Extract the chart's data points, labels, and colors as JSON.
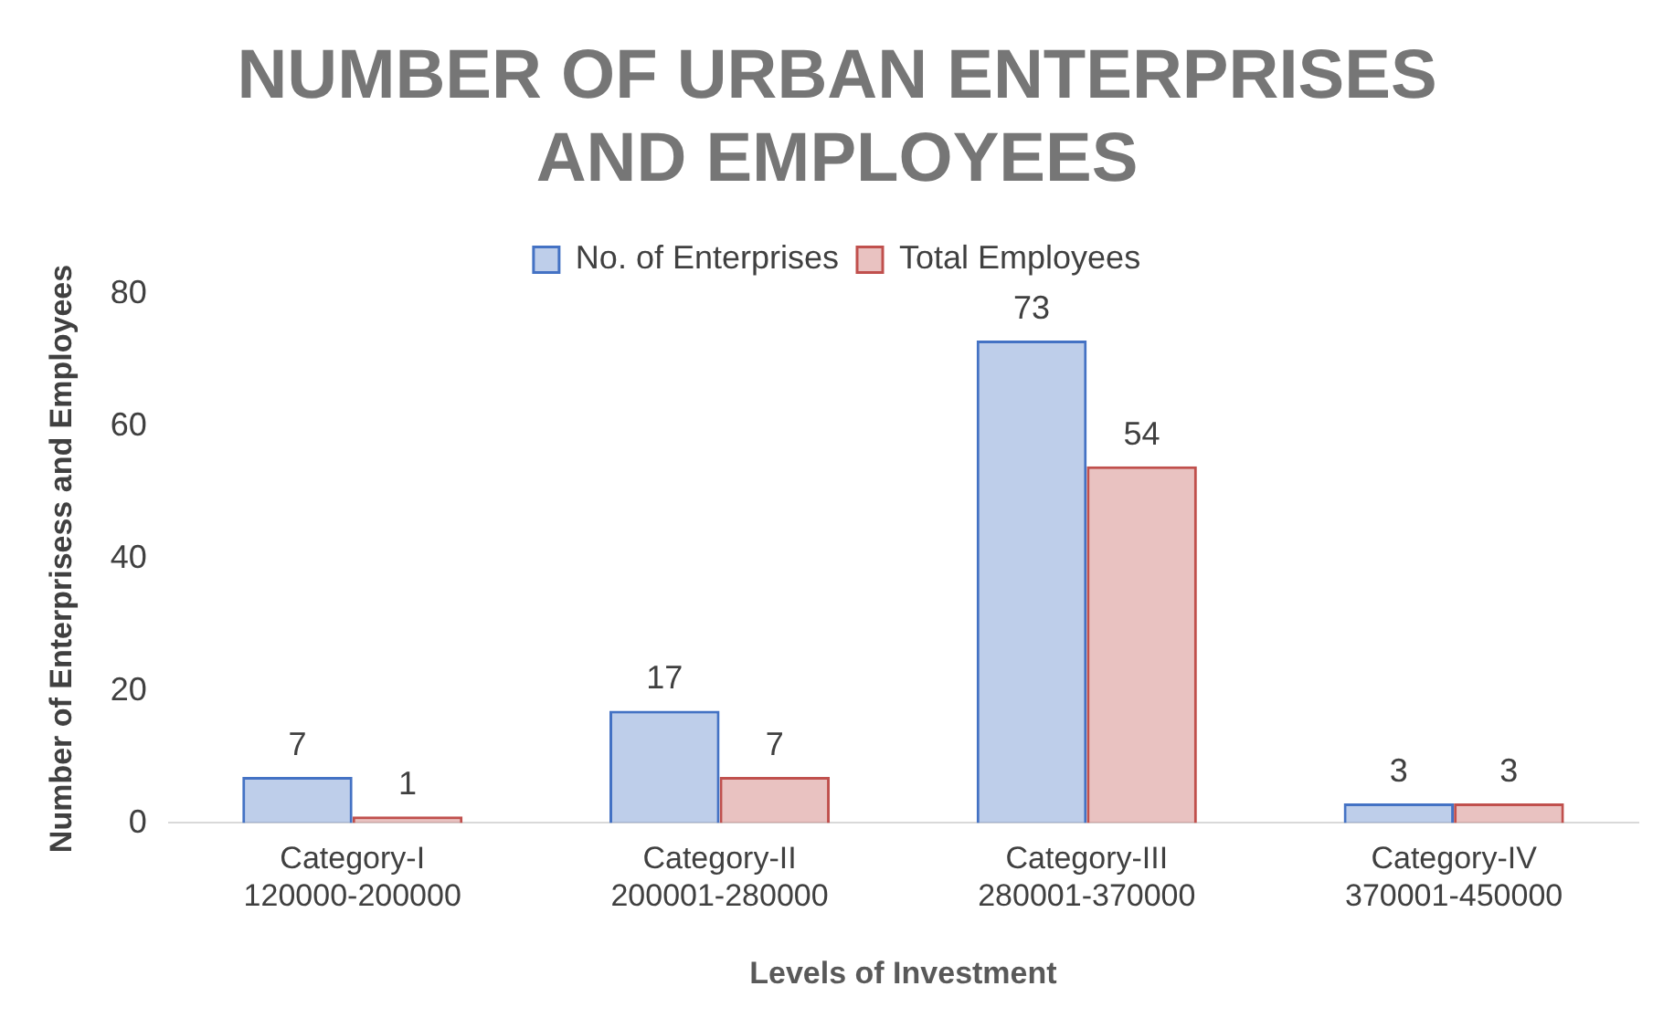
{
  "chart_data": {
    "type": "bar",
    "title": "NUMBER OF URBAN ENTERPRISES AND EMPLOYEES",
    "xlabel": "Levels of Investment",
    "ylabel": "Number of Enterprisess and Employees",
    "categories": [
      "Category-I\n120000-200000",
      "Category-II\n200001-280000",
      "Category-III\n280001-370000",
      "Category-IV\n370001-450000"
    ],
    "series": [
      {
        "name": "No. of Enterprises",
        "color": "#4472c4",
        "values": [
          7,
          17,
          73,
          3
        ]
      },
      {
        "name": "Total Employees",
        "color": "#c0504d",
        "values": [
          1,
          7,
          54,
          3
        ]
      }
    ],
    "ylim": [
      0,
      80
    ],
    "yticks": [
      0,
      20,
      40,
      60,
      80
    ],
    "grid": false,
    "legend": "top",
    "data_labels": true
  }
}
